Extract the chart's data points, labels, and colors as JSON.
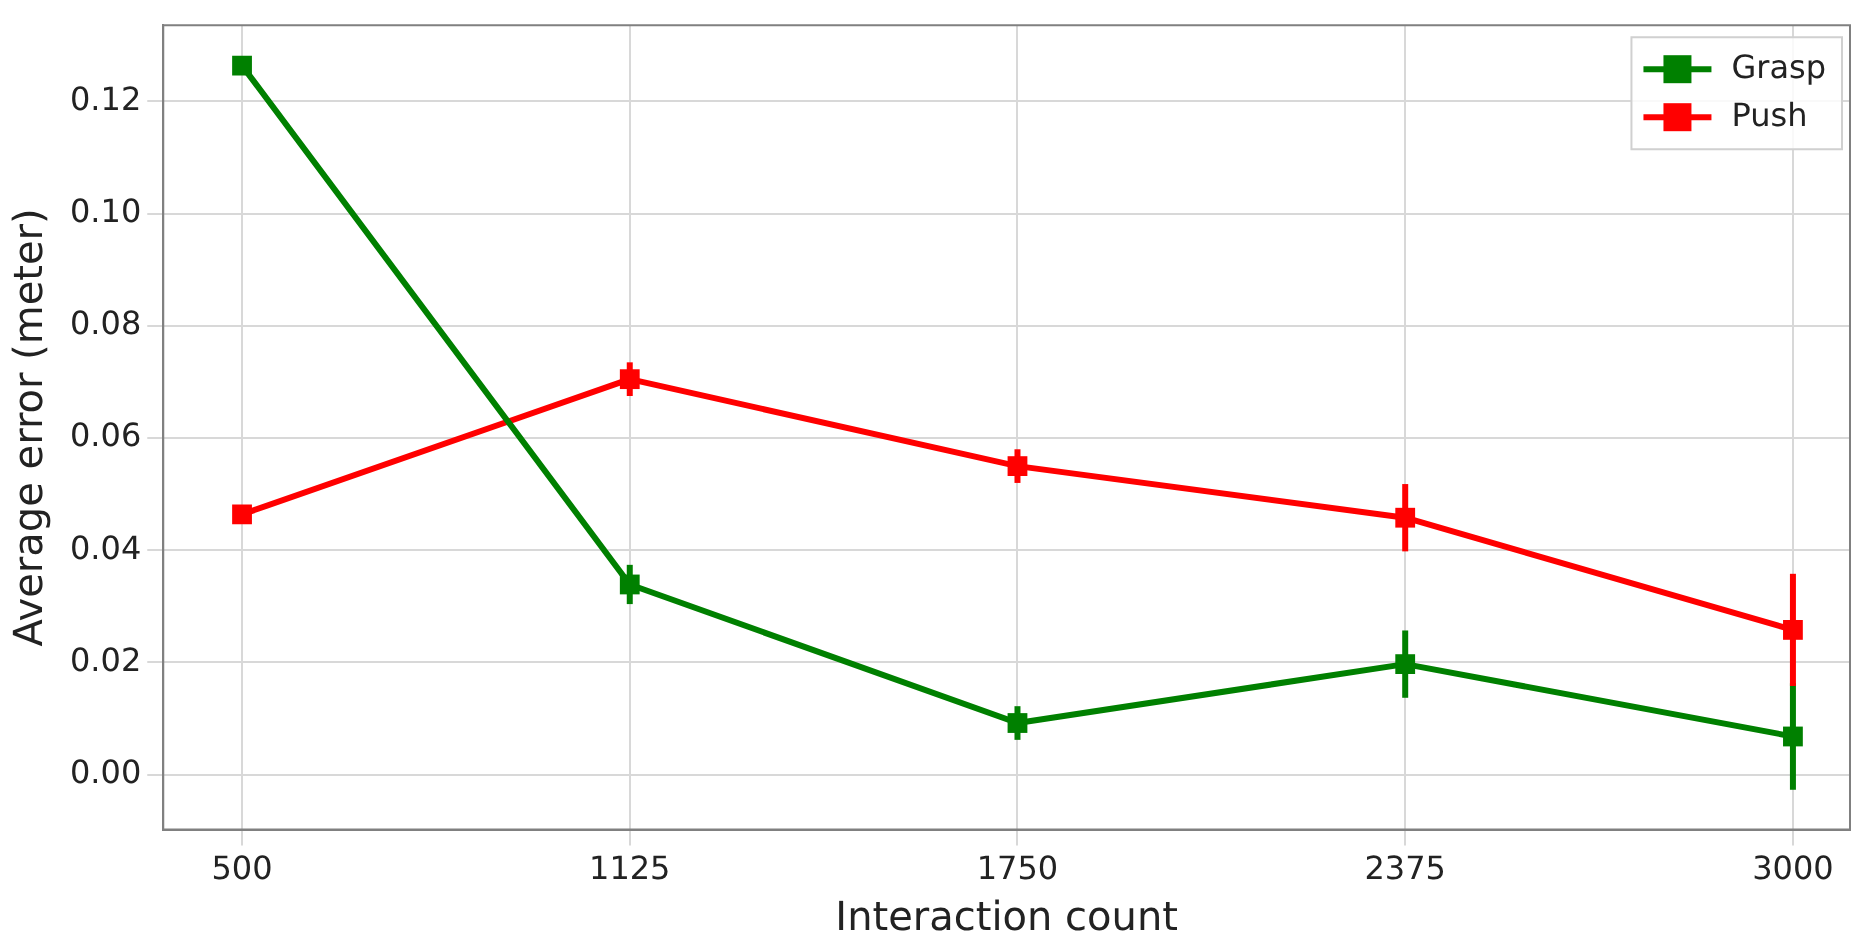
{
  "chart_data": {
    "type": "line",
    "xlabel": "Interaction count",
    "ylabel": "Average error (meter)",
    "x": [
      500,
      1125,
      1750,
      2375,
      3000
    ],
    "series": [
      {
        "name": "Grasp",
        "color": "#008000",
        "values": [
          0.1264,
          0.0339,
          0.0092,
          0.0197,
          0.0068
        ],
        "errors": [
          0.001,
          0.0035,
          0.003,
          0.006,
          0.0095
        ]
      },
      {
        "name": "Push",
        "color": "#ff0000",
        "values": [
          0.0464,
          0.0705,
          0.055,
          0.0458,
          0.0258
        ],
        "errors": [
          0.001,
          0.003,
          0.003,
          0.006,
          0.01
        ]
      }
    ],
    "xlim": [
      373,
      3092
    ],
    "xticks": [
      500,
      1125,
      1750,
      2375,
      3000
    ],
    "ylim": [
      -0.0098,
      0.1336
    ],
    "yticks": [
      {
        "value": 0,
        "label": "0.00"
      },
      {
        "value": 0.02,
        "label": "0.02"
      },
      {
        "value": 0.04,
        "label": "0.04"
      },
      {
        "value": 0.06,
        "label": "0.06"
      },
      {
        "value": 0.08,
        "label": "0.08"
      },
      {
        "value": 0.1,
        "label": "0.10"
      },
      {
        "value": 0.12,
        "label": "0.12"
      }
    ],
    "grid": true,
    "legend": "top right",
    "marker": "square",
    "line_style": "solid"
  }
}
